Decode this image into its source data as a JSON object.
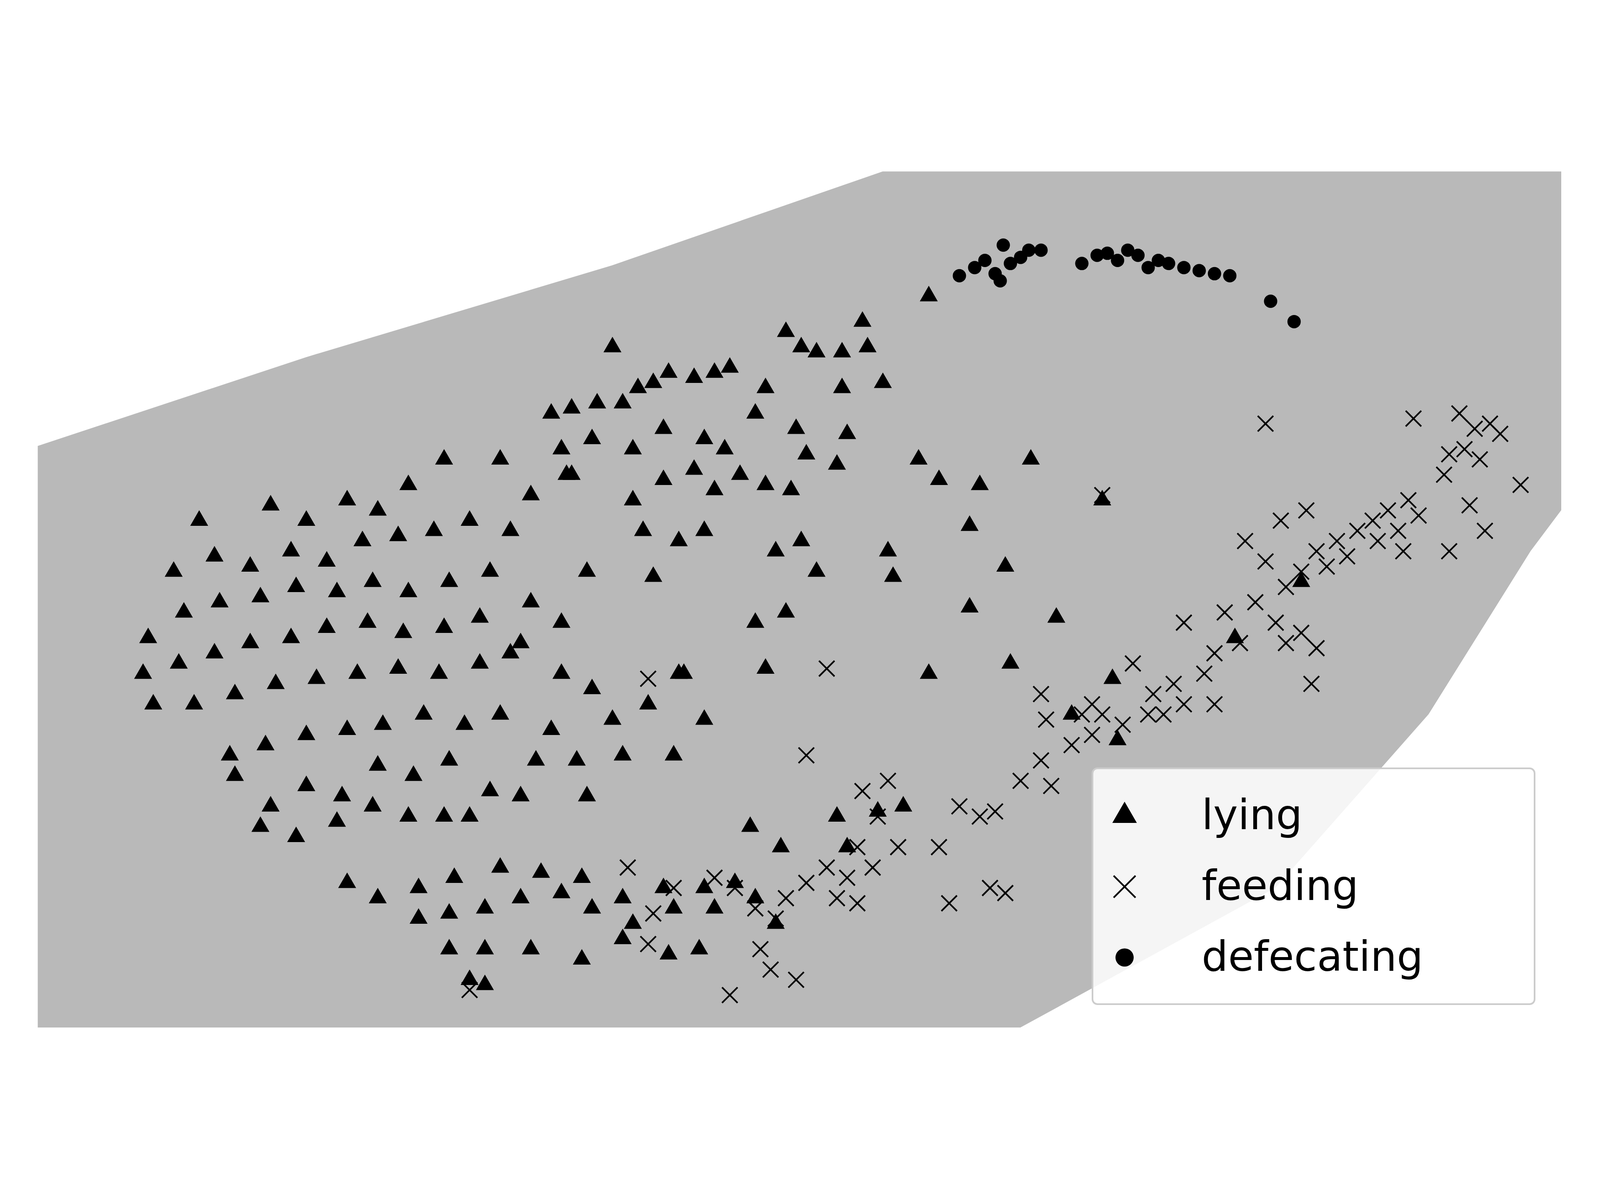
{
  "chart_data": {
    "type": "scatter",
    "xlim": [
      0,
      1568
    ],
    "ylim": [
      1176,
      0
    ],
    "tick_labels": false,
    "legend": "lower right",
    "series": [
      {
        "name": "lying",
        "marker": "triangle",
        "color": "#000000",
        "values": [
          [
            195,
            510
          ],
          [
            265,
            495
          ],
          [
            300,
            510
          ],
          [
            340,
            490
          ],
          [
            370,
            500
          ],
          [
            400,
            475
          ],
          [
            435,
            450
          ],
          [
            490,
            450
          ],
          [
            520,
            485
          ],
          [
            555,
            465
          ],
          [
            170,
            560
          ],
          [
            210,
            545
          ],
          [
            245,
            555
          ],
          [
            285,
            540
          ],
          [
            320,
            550
          ],
          [
            355,
            530
          ],
          [
            390,
            525
          ],
          [
            425,
            520
          ],
          [
            460,
            510
          ],
          [
            500,
            520
          ],
          [
            145,
            625
          ],
          [
            180,
            600
          ],
          [
            215,
            590
          ],
          [
            255,
            585
          ],
          [
            290,
            575
          ],
          [
            330,
            580
          ],
          [
            365,
            570
          ],
          [
            400,
            580
          ],
          [
            440,
            570
          ],
          [
            480,
            560
          ],
          [
            520,
            590
          ],
          [
            575,
            560
          ],
          [
            140,
            660
          ],
          [
            175,
            650
          ],
          [
            210,
            640
          ],
          [
            245,
            630
          ],
          [
            285,
            625
          ],
          [
            320,
            615
          ],
          [
            360,
            610
          ],
          [
            395,
            620
          ],
          [
            435,
            615
          ],
          [
            470,
            605
          ],
          [
            510,
            630
          ],
          [
            550,
            610
          ],
          [
            150,
            690
          ],
          [
            190,
            690
          ],
          [
            230,
            680
          ],
          [
            270,
            670
          ],
          [
            310,
            665
          ],
          [
            350,
            660
          ],
          [
            390,
            655
          ],
          [
            430,
            660
          ],
          [
            470,
            650
          ],
          [
            500,
            640
          ],
          [
            550,
            660
          ],
          [
            580,
            675
          ],
          [
            225,
            740
          ],
          [
            260,
            730
          ],
          [
            300,
            720
          ],
          [
            340,
            715
          ],
          [
            375,
            710
          ],
          [
            415,
            700
          ],
          [
            455,
            710
          ],
          [
            490,
            700
          ],
          [
            540,
            715
          ],
          [
            600,
            705
          ],
          [
            635,
            690
          ],
          [
            665,
            660
          ],
          [
            230,
            760
          ],
          [
            265,
            790
          ],
          [
            300,
            770
          ],
          [
            335,
            780
          ],
          [
            370,
            750
          ],
          [
            405,
            760
          ],
          [
            440,
            745
          ],
          [
            480,
            775
          ],
          [
            525,
            745
          ],
          [
            565,
            745
          ],
          [
            660,
            740
          ],
          [
            690,
            705
          ],
          [
            255,
            810
          ],
          [
            290,
            820
          ],
          [
            330,
            805
          ],
          [
            365,
            790
          ],
          [
            400,
            800
          ],
          [
            435,
            800
          ],
          [
            460,
            800
          ],
          [
            510,
            780
          ],
          [
            575,
            780
          ],
          [
            610,
            740
          ],
          [
            340,
            865
          ],
          [
            370,
            880
          ],
          [
            410,
            870
          ],
          [
            445,
            860
          ],
          [
            490,
            850
          ],
          [
            530,
            855
          ],
          [
            570,
            860
          ],
          [
            610,
            880
          ],
          [
            650,
            870
          ],
          [
            690,
            870
          ],
          [
            720,
            865
          ],
          [
            410,
            900
          ],
          [
            440,
            895
          ],
          [
            475,
            890
          ],
          [
            510,
            880
          ],
          [
            550,
            875
          ],
          [
            580,
            890
          ],
          [
            620,
            905
          ],
          [
            660,
            890
          ],
          [
            700,
            890
          ],
          [
            740,
            880
          ],
          [
            440,
            930
          ],
          [
            475,
            930
          ],
          [
            520,
            930
          ],
          [
            570,
            940
          ],
          [
            610,
            920
          ],
          [
            655,
            935
          ],
          [
            685,
            930
          ],
          [
            760,
            905
          ],
          [
            460,
            960
          ],
          [
            475,
            965
          ],
          [
            820,
            800
          ],
          [
            830,
            830
          ],
          [
            860,
            795
          ],
          [
            885,
            790
          ],
          [
            735,
            810
          ],
          [
            765,
            830
          ],
          [
            540,
            405
          ],
          [
            560,
            400
          ],
          [
            585,
            395
          ],
          [
            600,
            340
          ],
          [
            610,
            395
          ],
          [
            625,
            380
          ],
          [
            640,
            375
          ],
          [
            655,
            365
          ],
          [
            680,
            370
          ],
          [
            700,
            365
          ],
          [
            715,
            360
          ],
          [
            750,
            380
          ],
          [
            770,
            325
          ],
          [
            785,
            340
          ],
          [
            800,
            345
          ],
          [
            825,
            345
          ],
          [
            845,
            315
          ],
          [
            850,
            340
          ],
          [
            865,
            375
          ],
          [
            825,
            380
          ],
          [
            780,
            420
          ],
          [
            830,
            425
          ],
          [
            550,
            440
          ],
          [
            580,
            430
          ],
          [
            620,
            440
          ],
          [
            650,
            420
          ],
          [
            690,
            430
          ],
          [
            710,
            440
          ],
          [
            740,
            405
          ],
          [
            790,
            445
          ],
          [
            820,
            455
          ],
          [
            560,
            465
          ],
          [
            620,
            490
          ],
          [
            650,
            470
          ],
          [
            680,
            460
          ],
          [
            700,
            480
          ],
          [
            725,
            465
          ],
          [
            750,
            475
          ],
          [
            775,
            480
          ],
          [
            630,
            520
          ],
          [
            665,
            530
          ],
          [
            690,
            520
          ],
          [
            760,
            540
          ],
          [
            785,
            530
          ],
          [
            800,
            560
          ],
          [
            640,
            565
          ],
          [
            910,
            290
          ],
          [
            900,
            450
          ],
          [
            920,
            470
          ],
          [
            960,
            475
          ],
          [
            1010,
            450
          ],
          [
            1080,
            490
          ],
          [
            950,
            515
          ],
          [
            870,
            540
          ],
          [
            875,
            565
          ],
          [
            985,
            555
          ],
          [
            950,
            595
          ],
          [
            1035,
            605
          ],
          [
            910,
            660
          ],
          [
            990,
            650
          ],
          [
            1090,
            665
          ],
          [
            1050,
            700
          ],
          [
            1095,
            725
          ],
          [
            740,
            610
          ],
          [
            770,
            600
          ],
          [
            750,
            655
          ],
          [
            670,
            660
          ],
          [
            1275,
            570
          ],
          [
            1210,
            625
          ]
        ]
      },
      {
        "name": "feeding",
        "marker": "x",
        "color": "#000000",
        "values": [
          [
            1240,
            415
          ],
          [
            1385,
            410
          ],
          [
            1430,
            405
          ],
          [
            1445,
            420
          ],
          [
            1460,
            415
          ],
          [
            1470,
            425
          ],
          [
            1435,
            440
          ],
          [
            1450,
            450
          ],
          [
            1420,
            445
          ],
          [
            1490,
            475
          ],
          [
            1455,
            520
          ],
          [
            1420,
            540
          ],
          [
            1440,
            495
          ],
          [
            1415,
            465
          ],
          [
            1380,
            490
          ],
          [
            1360,
            500
          ],
          [
            1345,
            510
          ],
          [
            1390,
            505
          ],
          [
            1370,
            520
          ],
          [
            1330,
            520
          ],
          [
            1310,
            530
          ],
          [
            1290,
            540
          ],
          [
            1280,
            500
          ],
          [
            1255,
            510
          ],
          [
            1320,
            545
          ],
          [
            1300,
            555
          ],
          [
            1275,
            560
          ],
          [
            1350,
            530
          ],
          [
            1375,
            540
          ],
          [
            1220,
            530
          ],
          [
            1240,
            550
          ],
          [
            1260,
            575
          ],
          [
            1230,
            590
          ],
          [
            1250,
            610
          ],
          [
            1200,
            600
          ],
          [
            1215,
            630
          ],
          [
            1190,
            640
          ],
          [
            1160,
            610
          ],
          [
            1275,
            620
          ],
          [
            1290,
            635
          ],
          [
            1285,
            670
          ],
          [
            1260,
            630
          ],
          [
            1180,
            660
          ],
          [
            1150,
            670
          ],
          [
            1160,
            690
          ],
          [
            1130,
            680
          ],
          [
            1110,
            650
          ],
          [
            1140,
            700
          ],
          [
            1125,
            700
          ],
          [
            1100,
            710
          ],
          [
            1080,
            700
          ],
          [
            1190,
            690
          ],
          [
            1020,
            680
          ],
          [
            1025,
            705
          ],
          [
            1060,
            700
          ],
          [
            1070,
            720
          ],
          [
            1050,
            730
          ],
          [
            1000,
            765
          ],
          [
            1020,
            745
          ],
          [
            1030,
            770
          ],
          [
            1070,
            690
          ],
          [
            940,
            790
          ],
          [
            960,
            800
          ],
          [
            975,
            795
          ],
          [
            920,
            830
          ],
          [
            970,
            870
          ],
          [
            985,
            875
          ],
          [
            930,
            885
          ],
          [
            880,
            830
          ],
          [
            870,
            765
          ],
          [
            845,
            775
          ],
          [
            860,
            800
          ],
          [
            840,
            830
          ],
          [
            855,
            850
          ],
          [
            830,
            860
          ],
          [
            810,
            850
          ],
          [
            820,
            880
          ],
          [
            840,
            885
          ],
          [
            790,
            865
          ],
          [
            770,
            880
          ],
          [
            760,
            900
          ],
          [
            740,
            890
          ],
          [
            720,
            870
          ],
          [
            700,
            860
          ],
          [
            660,
            870
          ],
          [
            635,
            925
          ],
          [
            615,
            850
          ],
          [
            640,
            895
          ],
          [
            755,
            950
          ],
          [
            780,
            960
          ],
          [
            745,
            930
          ],
          [
            715,
            975
          ],
          [
            810,
            655
          ],
          [
            790,
            740
          ],
          [
            635,
            665
          ],
          [
            1080,
            485
          ],
          [
            460,
            970
          ]
        ]
      },
      {
        "name": "defecating",
        "marker": "circle",
        "color": "#000000",
        "values": [
          [
            940,
            270
          ],
          [
            955,
            262
          ],
          [
            965,
            255
          ],
          [
            975,
            268
          ],
          [
            983,
            240
          ],
          [
            990,
            258
          ],
          [
            1000,
            252
          ],
          [
            1008,
            245
          ],
          [
            1020,
            245
          ],
          [
            980,
            275
          ],
          [
            1060,
            258
          ],
          [
            1075,
            250
          ],
          [
            1085,
            248
          ],
          [
            1095,
            255
          ],
          [
            1105,
            245
          ],
          [
            1115,
            250
          ],
          [
            1125,
            262
          ],
          [
            1135,
            255
          ],
          [
            1145,
            258
          ],
          [
            1160,
            262
          ],
          [
            1175,
            265
          ],
          [
            1190,
            268
          ],
          [
            1205,
            270
          ],
          [
            1245,
            295
          ],
          [
            1268,
            315
          ]
        ]
      }
    ]
  }
}
